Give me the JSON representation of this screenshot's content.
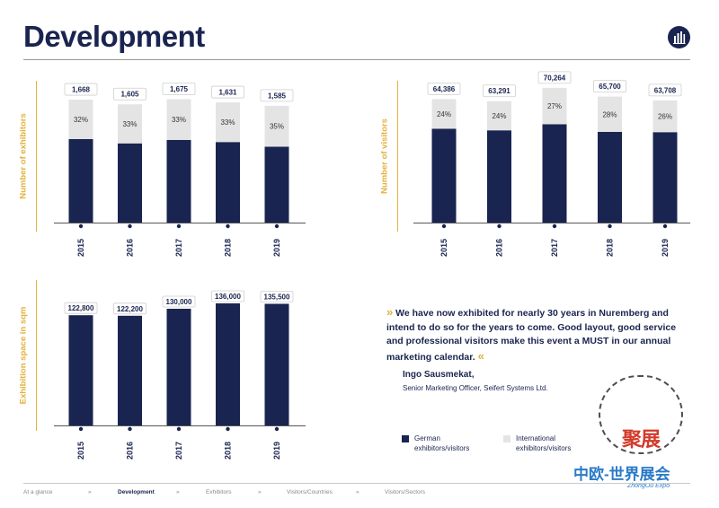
{
  "page": {
    "title": "Development"
  },
  "colors": {
    "navy": "#1a2450",
    "light": "#e4e4e4",
    "accent": "#e2b23c"
  },
  "chart_data": [
    {
      "type": "bar",
      "stacked": true,
      "ylabel": "Number of exhibitors",
      "categories": [
        "2015",
        "2016",
        "2017",
        "2018",
        "2019"
      ],
      "totals": [
        1668,
        1605,
        1675,
        1631,
        1585
      ],
      "total_labels": [
        "1,668",
        "1,605",
        "1,675",
        "1,631",
        "1,585"
      ],
      "series": [
        {
          "name": "German exhibitors/visitors",
          "values": [
            1134,
            1075,
            1122,
            1093,
            1030
          ]
        },
        {
          "name": "International exhibitors/visitors",
          "values": [
            534,
            530,
            553,
            538,
            555
          ],
          "labels": [
            "32%",
            "33%",
            "33%",
            "33%",
            "35%"
          ]
        }
      ],
      "ylim": [
        0,
        1900
      ]
    },
    {
      "type": "bar",
      "stacked": true,
      "ylabel": "Number of visitors",
      "categories": [
        "2015",
        "2016",
        "2017",
        "2018",
        "2019"
      ],
      "totals": [
        64386,
        63291,
        70264,
        65700,
        63708
      ],
      "total_labels": [
        "64,386",
        "63,291",
        "70,264",
        "65,700",
        "63,708"
      ],
      "series": [
        {
          "name": "German exhibitors/visitors",
          "values": [
            48933,
            48101,
            51293,
            47304,
            47144
          ]
        },
        {
          "name": "International exhibitors/visitors",
          "values": [
            15453,
            15190,
            18971,
            18396,
            16564
          ],
          "labels": [
            "24%",
            "24%",
            "27%",
            "28%",
            "26%"
          ]
        }
      ],
      "ylim": [
        0,
        73000
      ]
    },
    {
      "type": "bar",
      "ylabel": "Exhibition space in sqm",
      "categories": [
        "2015",
        "2016",
        "2017",
        "2018",
        "2019"
      ],
      "values": [
        122800,
        122200,
        130000,
        136000,
        135500
      ],
      "value_labels": [
        "122,800",
        "122,200",
        "130,000",
        "136,000",
        "135,500"
      ],
      "ylim": [
        0,
        155000
      ]
    }
  ],
  "quote": {
    "open_mark": "»",
    "text": "We have now exhibited for nearly 30 years in Nuremberg and intend to do so for the years to come. Good layout, good service and professional visitors make this event a MUST in our annual marketing calendar.",
    "close_mark": "«",
    "author": "Ingo Sausmekat,",
    "role": "Senior Marketing Officer, Seifert Systems Ltd."
  },
  "legend": {
    "german": "German exhibitors/visitors",
    "international": "International exhibitors/visitors"
  },
  "watermark": {
    "top": "聚展",
    "main": "中欧-世界展会",
    "sub": "ZhongOu Expo"
  },
  "footer": {
    "items": [
      "At a glance",
      "Development",
      "Exhibitors",
      "Visitors/Countries",
      "Visitors/Sectors"
    ],
    "separator": "»"
  }
}
